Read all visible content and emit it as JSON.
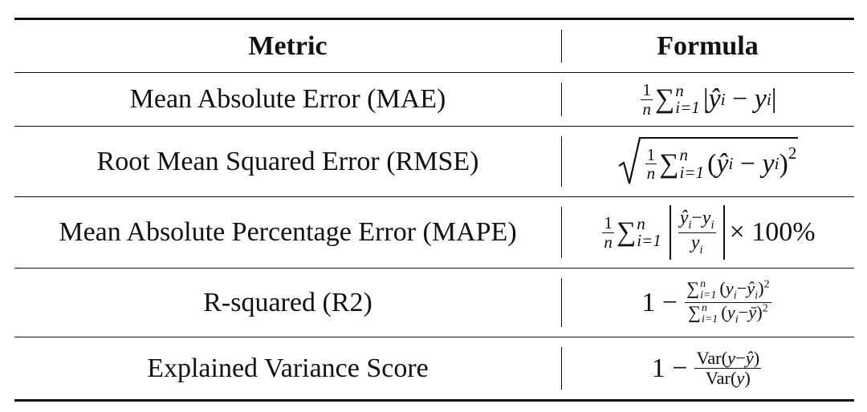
{
  "table": {
    "header": [
      "Metric",
      "Formula"
    ],
    "rows": [
      {
        "metric": "Mean Absolute Error (MAE)",
        "formula": [
          "1",
          "n",
          "∑",
          "n",
          "i=1",
          "|",
          "ŷ",
          "i",
          "−",
          "y",
          "i",
          "|"
        ]
      },
      {
        "metric": "Root Mean Squared Error (RMSE)",
        "formula": [
          "1",
          "n",
          "∑",
          "n",
          "i=1",
          "(",
          "ŷ",
          "i",
          "−",
          "y",
          "i",
          ")",
          "2"
        ]
      },
      {
        "metric": "Mean Absolute Percentage Error (MAPE)",
        "formula": [
          "1",
          "n",
          "∑",
          "n",
          "i=1",
          "ŷ",
          "i",
          "−",
          "y",
          "i",
          "y",
          "i",
          "× 100%"
        ]
      },
      {
        "metric": "R-squared (R2)",
        "formula": [
          "1 −",
          "∑",
          "n",
          "i=1",
          "(",
          "y",
          "i",
          "−",
          "ŷ",
          "i",
          ")",
          "2",
          "∑",
          "n",
          "i=1",
          "(",
          "y",
          "i",
          "−",
          "ȳ",
          ")",
          "2"
        ]
      },
      {
        "metric": "Explained Variance Score",
        "formula": [
          "1 −",
          "Var(",
          "y",
          "−",
          "ŷ",
          ")",
          "Var(",
          "y",
          ")"
        ]
      }
    ]
  }
}
